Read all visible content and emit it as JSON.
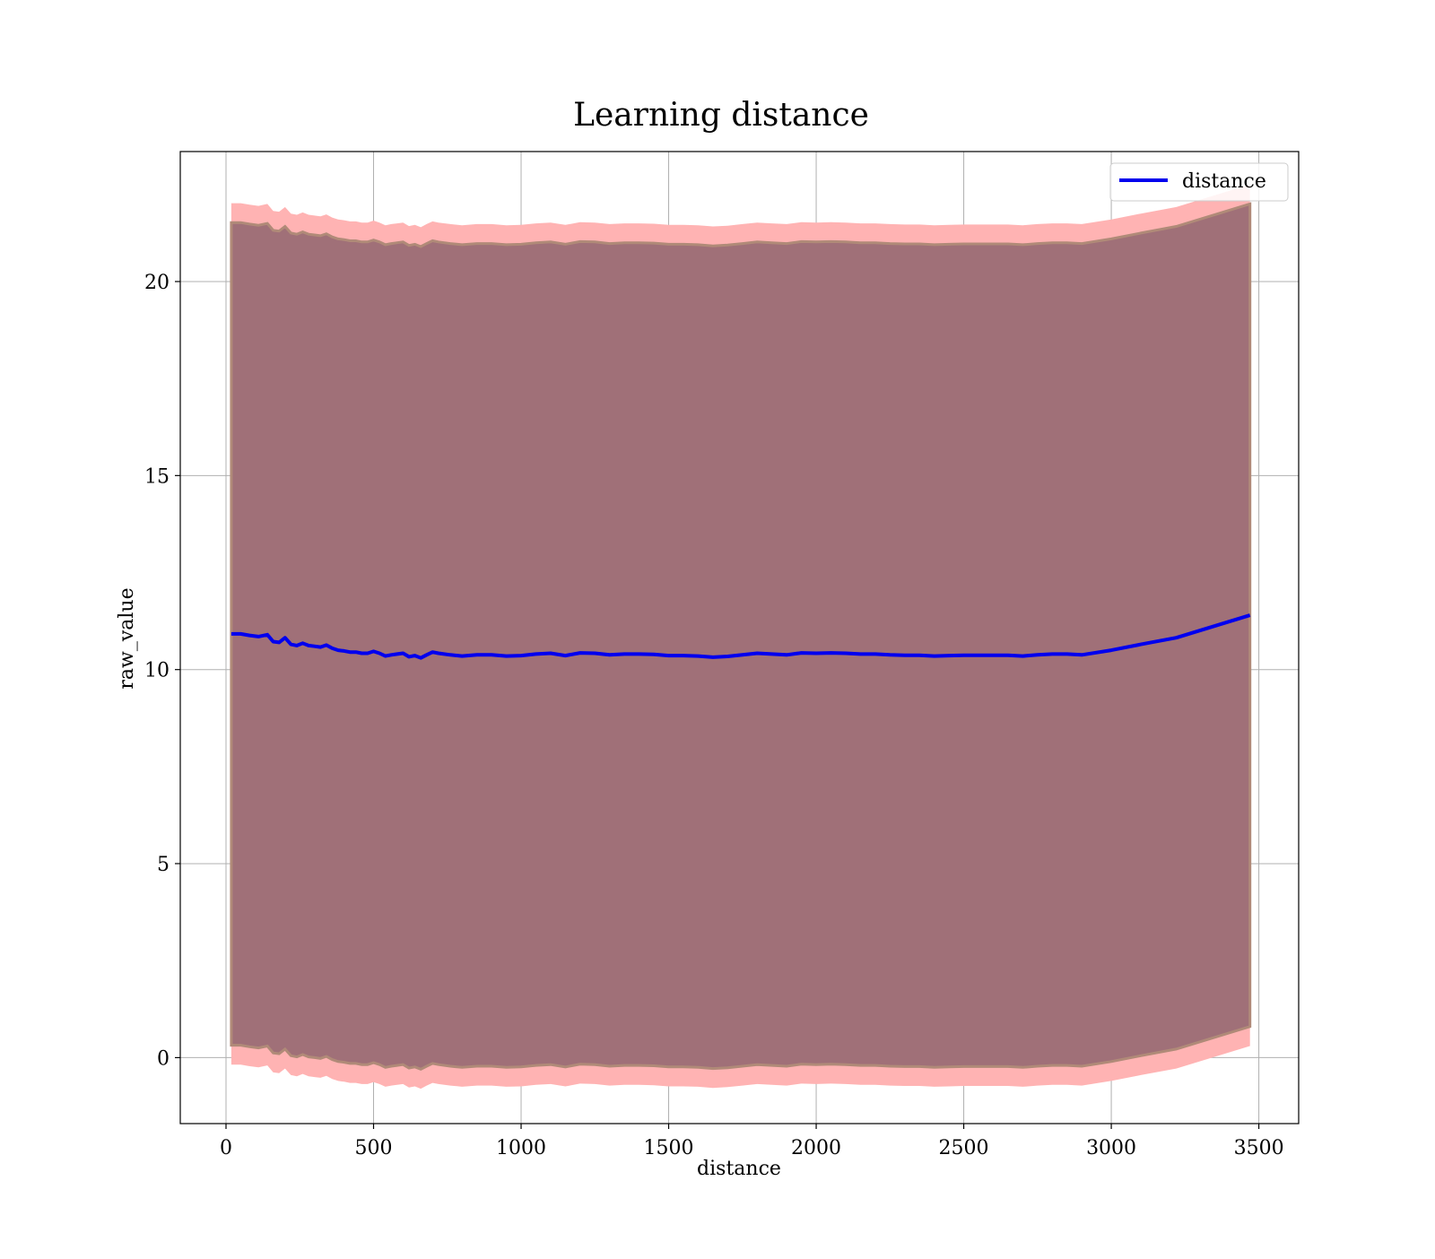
{
  "chart_data": {
    "type": "line",
    "title": "Learning distance",
    "xlabel": "distance",
    "ylabel": "raw_value",
    "xlim": [
      -155,
      3635
    ],
    "ylim": [
      -1.7,
      23.35
    ],
    "xticks": [
      0,
      500,
      1000,
      1500,
      2000,
      2500,
      3000,
      3500
    ],
    "yticks": [
      0,
      5,
      10,
      15,
      20
    ],
    "grid": true,
    "legend": {
      "placement": "top-right",
      "entries": [
        "distance"
      ]
    },
    "colors": {
      "line": "#0000ee",
      "outer_band": "#ffb3b3",
      "inner_band": "#a07078",
      "band_edge": "#b08a78",
      "grid": "#b0b0b0"
    },
    "series": [
      {
        "name": "distance",
        "x": [
          18,
          50,
          80,
          110,
          140,
          160,
          180,
          200,
          220,
          240,
          260,
          280,
          300,
          320,
          340,
          360,
          380,
          400,
          420,
          440,
          460,
          480,
          500,
          520,
          540,
          560,
          580,
          600,
          620,
          640,
          660,
          680,
          700,
          720,
          760,
          800,
          850,
          900,
          950,
          1000,
          1050,
          1100,
          1150,
          1200,
          1250,
          1300,
          1350,
          1400,
          1450,
          1500,
          1550,
          1600,
          1650,
          1700,
          1750,
          1800,
          1850,
          1900,
          1950,
          2000,
          2050,
          2100,
          2150,
          2200,
          2250,
          2300,
          2350,
          2400,
          2450,
          2500,
          2550,
          2600,
          2650,
          2700,
          2750,
          2800,
          2850,
          2900,
          3000,
          3100,
          3220,
          3470
        ],
        "y": [
          10.92,
          10.92,
          10.88,
          10.85,
          10.9,
          10.72,
          10.7,
          10.82,
          10.65,
          10.62,
          10.68,
          10.62,
          10.6,
          10.58,
          10.63,
          10.55,
          10.5,
          10.48,
          10.45,
          10.45,
          10.42,
          10.42,
          10.47,
          10.42,
          10.35,
          10.38,
          10.4,
          10.42,
          10.33,
          10.36,
          10.3,
          10.38,
          10.45,
          10.42,
          10.38,
          10.35,
          10.38,
          10.38,
          10.35,
          10.36,
          10.4,
          10.42,
          10.36,
          10.43,
          10.42,
          10.38,
          10.4,
          10.4,
          10.39,
          10.36,
          10.36,
          10.35,
          10.32,
          10.34,
          10.38,
          10.42,
          10.4,
          10.38,
          10.43,
          10.42,
          10.43,
          10.42,
          10.4,
          10.4,
          10.38,
          10.37,
          10.37,
          10.35,
          10.36,
          10.37,
          10.37,
          10.37,
          10.37,
          10.35,
          10.38,
          10.4,
          10.4,
          10.38,
          10.5,
          10.65,
          10.82,
          11.4
        ],
        "inner_band_offset": 10.6,
        "outer_band_offset": 11.1
      }
    ]
  }
}
